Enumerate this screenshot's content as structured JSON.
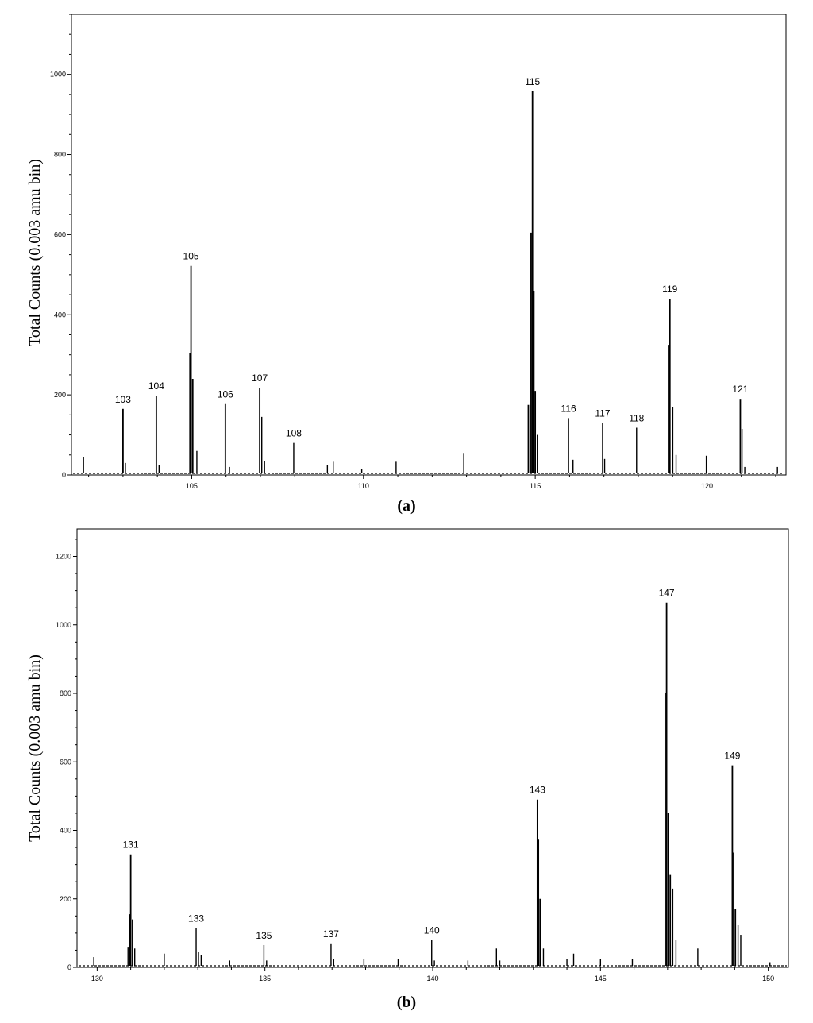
{
  "chart_data": [
    {
      "type": "bar",
      "panel": "(a)",
      "ylabel": "Total Counts (0.003 amu bin)",
      "xlim": [
        101.5,
        122.3
      ],
      "ylim": [
        0,
        1150
      ],
      "xticks": [
        105,
        110,
        115,
        120
      ],
      "yticks": [
        0,
        200,
        400,
        600,
        800,
        1000
      ],
      "peaks": [
        {
          "x": 101.85,
          "y": 45,
          "label": ""
        },
        {
          "x": 103.0,
          "y": 165,
          "label": "103"
        },
        {
          "x": 103.07,
          "y": 30,
          "label": ""
        },
        {
          "x": 103.97,
          "y": 198,
          "label": "104"
        },
        {
          "x": 104.05,
          "y": 25,
          "label": ""
        },
        {
          "x": 104.98,
          "y": 522,
          "label": "105"
        },
        {
          "x": 104.95,
          "y": 305,
          "label": ""
        },
        {
          "x": 105.03,
          "y": 240,
          "label": ""
        },
        {
          "x": 105.15,
          "y": 60,
          "label": ""
        },
        {
          "x": 105.98,
          "y": 177,
          "label": "106"
        },
        {
          "x": 106.1,
          "y": 20,
          "label": ""
        },
        {
          "x": 106.98,
          "y": 218,
          "label": "107"
        },
        {
          "x": 107.04,
          "y": 145,
          "label": ""
        },
        {
          "x": 107.12,
          "y": 35,
          "label": ""
        },
        {
          "x": 107.97,
          "y": 80,
          "label": "108"
        },
        {
          "x": 108.95,
          "y": 25,
          "label": ""
        },
        {
          "x": 109.12,
          "y": 33,
          "label": ""
        },
        {
          "x": 109.95,
          "y": 15,
          "label": ""
        },
        {
          "x": 110.95,
          "y": 33,
          "label": ""
        },
        {
          "x": 112.92,
          "y": 55,
          "label": ""
        },
        {
          "x": 114.88,
          "y": 605,
          "label": ""
        },
        {
          "x": 114.92,
          "y": 958,
          "label": "115"
        },
        {
          "x": 114.96,
          "y": 460,
          "label": ""
        },
        {
          "x": 115.0,
          "y": 210,
          "label": ""
        },
        {
          "x": 115.06,
          "y": 100,
          "label": ""
        },
        {
          "x": 114.8,
          "y": 175,
          "label": ""
        },
        {
          "x": 115.97,
          "y": 142,
          "label": "116"
        },
        {
          "x": 116.1,
          "y": 38,
          "label": ""
        },
        {
          "x": 116.96,
          "y": 130,
          "label": "117"
        },
        {
          "x": 117.02,
          "y": 40,
          "label": ""
        },
        {
          "x": 117.95,
          "y": 118,
          "label": "118"
        },
        {
          "x": 118.92,
          "y": 440,
          "label": "119"
        },
        {
          "x": 118.88,
          "y": 325,
          "label": ""
        },
        {
          "x": 119.0,
          "y": 170,
          "label": ""
        },
        {
          "x": 119.1,
          "y": 50,
          "label": ""
        },
        {
          "x": 119.98,
          "y": 48,
          "label": ""
        },
        {
          "x": 120.97,
          "y": 190,
          "label": "121"
        },
        {
          "x": 121.02,
          "y": 115,
          "label": ""
        },
        {
          "x": 121.1,
          "y": 20,
          "label": ""
        },
        {
          "x": 122.05,
          "y": 20,
          "label": ""
        }
      ]
    },
    {
      "type": "bar",
      "panel": "(b)",
      "ylabel": "Total Counts (0.003 amu bin)",
      "xlim": [
        129.4,
        150.6
      ],
      "ylim": [
        0,
        1280
      ],
      "xticks": [
        130,
        135,
        140,
        145,
        150
      ],
      "yticks": [
        0,
        200,
        400,
        600,
        800,
        1000,
        1200
      ],
      "peaks": [
        {
          "x": 129.9,
          "y": 30,
          "label": ""
        },
        {
          "x": 130.92,
          "y": 60,
          "label": ""
        },
        {
          "x": 130.97,
          "y": 155,
          "label": ""
        },
        {
          "x": 131.0,
          "y": 330,
          "label": "131"
        },
        {
          "x": 131.05,
          "y": 140,
          "label": ""
        },
        {
          "x": 131.12,
          "y": 55,
          "label": ""
        },
        {
          "x": 132.0,
          "y": 40,
          "label": ""
        },
        {
          "x": 132.95,
          "y": 115,
          "label": "133"
        },
        {
          "x": 133.02,
          "y": 45,
          "label": ""
        },
        {
          "x": 133.1,
          "y": 35,
          "label": ""
        },
        {
          "x": 133.95,
          "y": 20,
          "label": ""
        },
        {
          "x": 134.97,
          "y": 65,
          "label": "135"
        },
        {
          "x": 135.05,
          "y": 20,
          "label": ""
        },
        {
          "x": 136.97,
          "y": 70,
          "label": "137"
        },
        {
          "x": 137.05,
          "y": 25,
          "label": ""
        },
        {
          "x": 137.95,
          "y": 25,
          "label": ""
        },
        {
          "x": 138.97,
          "y": 25,
          "label": ""
        },
        {
          "x": 139.97,
          "y": 80,
          "label": "140"
        },
        {
          "x": 140.05,
          "y": 20,
          "label": ""
        },
        {
          "x": 141.05,
          "y": 20,
          "label": ""
        },
        {
          "x": 141.9,
          "y": 55,
          "label": ""
        },
        {
          "x": 142.0,
          "y": 20,
          "label": ""
        },
        {
          "x": 143.12,
          "y": 490,
          "label": "143"
        },
        {
          "x": 143.15,
          "y": 375,
          "label": ""
        },
        {
          "x": 143.2,
          "y": 200,
          "label": ""
        },
        {
          "x": 143.3,
          "y": 55,
          "label": ""
        },
        {
          "x": 144.0,
          "y": 25,
          "label": ""
        },
        {
          "x": 144.2,
          "y": 40,
          "label": ""
        },
        {
          "x": 145.0,
          "y": 25,
          "label": ""
        },
        {
          "x": 145.95,
          "y": 25,
          "label": ""
        },
        {
          "x": 146.93,
          "y": 800,
          "label": ""
        },
        {
          "x": 146.97,
          "y": 1065,
          "label": "147"
        },
        {
          "x": 147.02,
          "y": 450,
          "label": ""
        },
        {
          "x": 147.08,
          "y": 270,
          "label": ""
        },
        {
          "x": 147.15,
          "y": 230,
          "label": ""
        },
        {
          "x": 147.25,
          "y": 80,
          "label": ""
        },
        {
          "x": 147.9,
          "y": 55,
          "label": ""
        },
        {
          "x": 148.93,
          "y": 590,
          "label": "149"
        },
        {
          "x": 148.97,
          "y": 335,
          "label": ""
        },
        {
          "x": 149.02,
          "y": 170,
          "label": ""
        },
        {
          "x": 149.1,
          "y": 125,
          "label": ""
        },
        {
          "x": 149.18,
          "y": 95,
          "label": ""
        },
        {
          "x": 150.05,
          "y": 15,
          "label": ""
        }
      ]
    }
  ]
}
